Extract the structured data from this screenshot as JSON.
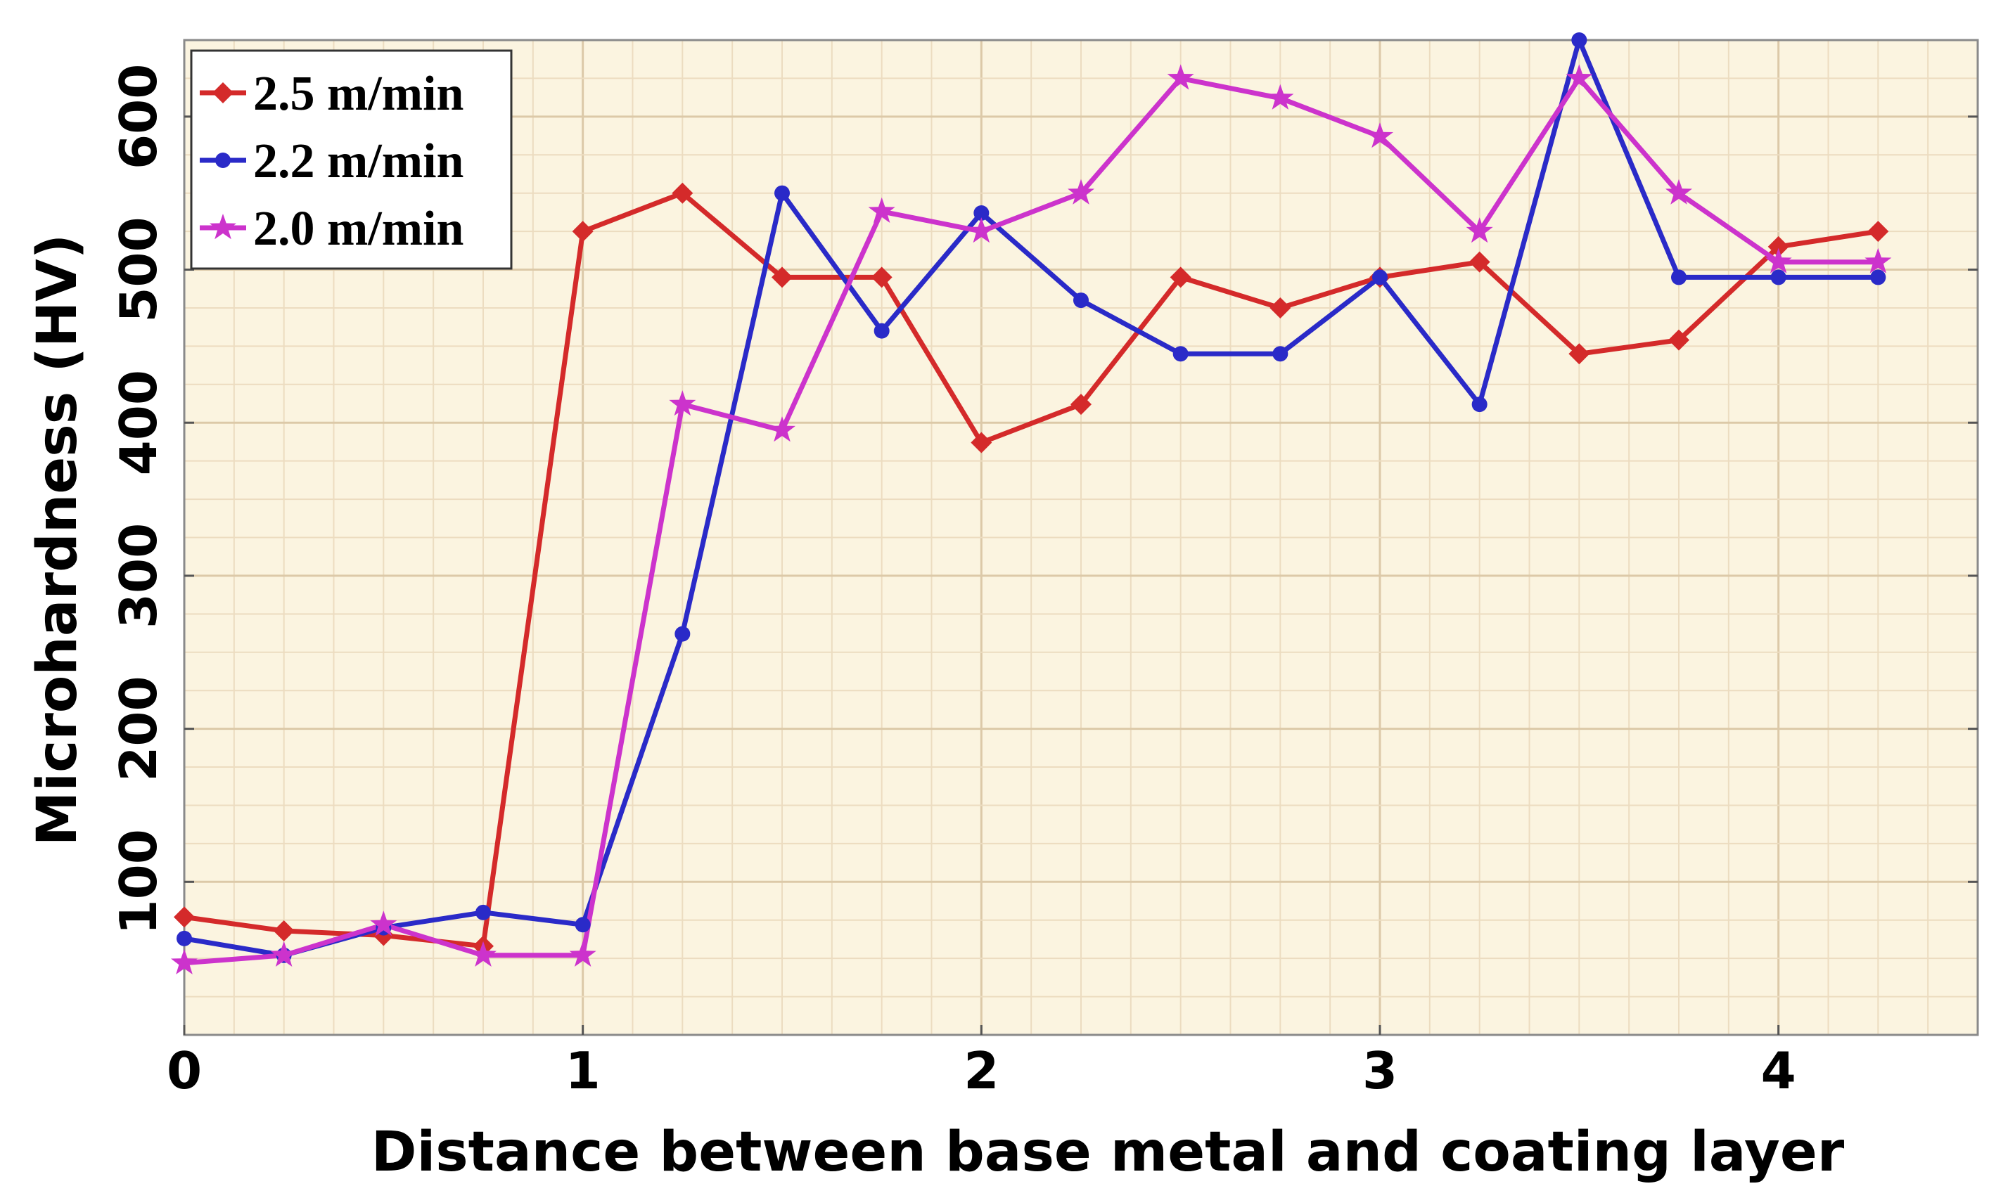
{
  "chart_data": {
    "type": "line",
    "title": "",
    "xlabel": "Distance between base metal  and coating layer",
    "ylabel": "Microhardness (HV)",
    "xlim": [
      0,
      4.5
    ],
    "ylim": [
      0,
      650
    ],
    "x_ticks": [
      0,
      1,
      2,
      3,
      4
    ],
    "x_tick_labels": [
      "0",
      "1",
      "2",
      "3",
      "4"
    ],
    "y_ticks": [
      100,
      200,
      300,
      400,
      500,
      600
    ],
    "y_tick_labels": [
      "100",
      "200",
      "300",
      "400",
      "500",
      "600"
    ],
    "grid": true,
    "legend_position": "top-left",
    "x": [
      0,
      0.25,
      0.5,
      0.75,
      1.0,
      1.25,
      1.5,
      1.75,
      2.0,
      2.25,
      2.5,
      2.75,
      3.0,
      3.25,
      3.5,
      3.75,
      4.0,
      4.25
    ],
    "series": [
      {
        "name": "2.5 m/min",
        "color": "#d42a2a",
        "marker": "diamond",
        "values": [
          77,
          68,
          65,
          58,
          525,
          550,
          495,
          495,
          387,
          412,
          495,
          475,
          495,
          505,
          445,
          454,
          515,
          525
        ]
      },
      {
        "name": "2.2 m/min",
        "color": "#2a2ac8",
        "marker": "circle",
        "values": [
          63,
          52,
          70,
          80,
          72,
          262,
          550,
          460,
          537,
          480,
          445,
          445,
          495,
          412,
          650,
          495,
          495,
          495
        ]
      },
      {
        "name": "2.0 m/min",
        "color": "#cc33cc",
        "marker": "star",
        "values": [
          47,
          52,
          72,
          52,
          52,
          412,
          395,
          538,
          525,
          550,
          625,
          612,
          587,
          525,
          625,
          550,
          505,
          505
        ]
      }
    ]
  }
}
